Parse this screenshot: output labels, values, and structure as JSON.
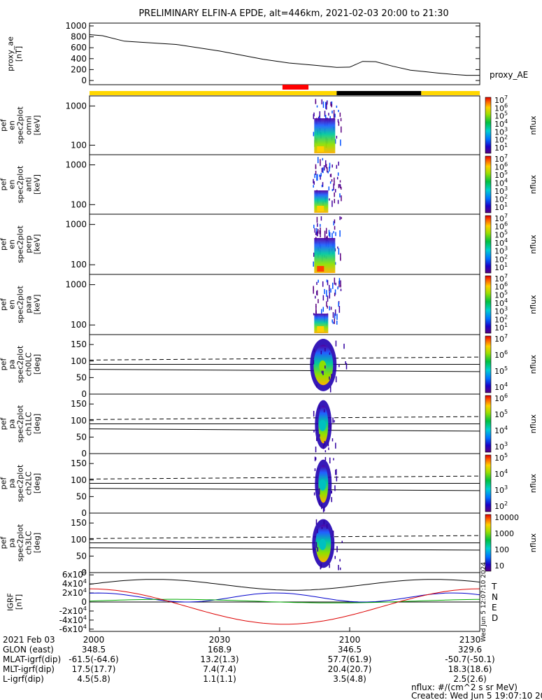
{
  "title": "PRELIMINARY ELFIN-A EPDE, alt=446km, 2021-02-03 20:00 to 21:30",
  "colors": {
    "orbit_day": "#ffd700",
    "orbit_night": "#000000",
    "science_zone": "#ff0000",
    "bx": "#000000",
    "by": "#0000cc",
    "bz": "#00aa00",
    "bd": "#dd0000"
  },
  "chart_data": [
    {
      "type": "line",
      "name": "proxy_ae",
      "ylabel": "proxy_ae\n[nT]",
      "legend": "proxy_AE",
      "x_minutes": [
        0,
        3,
        8,
        12,
        20,
        30,
        40,
        46,
        52,
        57,
        60,
        63,
        66,
        70,
        74,
        77,
        80,
        84,
        87,
        90
      ],
      "values": [
        840,
        820,
        720,
        700,
        660,
        540,
        390,
        320,
        280,
        240,
        245,
        350,
        345,
        260,
        190,
        165,
        140,
        110,
        95,
        95
      ],
      "ylim": [
        0,
        1000
      ],
      "yticks": [
        "1000",
        "800",
        "600",
        "400",
        "200",
        "0"
      ]
    },
    {
      "type": "heatmap",
      "name": "ela_pef_en_spec2plot_omni",
      "ylabel": "ela\npef\nen\nspec2plot\nomni\n[keV]",
      "yscale": "log",
      "yticks": [
        "1000",
        "100"
      ],
      "colorbar_label": "nflux",
      "colorbar_ticks": [
        "10^7",
        "10^6",
        "10^5",
        "10^4",
        "10^3",
        "10^2",
        "10^1"
      ]
    },
    {
      "type": "heatmap",
      "name": "ela_pef_en_spec2plot_anti",
      "ylabel": "ela\npef\nen\nspec2plot\nanti\n[keV]",
      "yscale": "log",
      "yticks": [
        "1000",
        "100"
      ],
      "colorbar_label": "nflux",
      "colorbar_ticks": [
        "10^7",
        "10^6",
        "10^5",
        "10^4",
        "10^3",
        "10^2",
        "10^1"
      ]
    },
    {
      "type": "heatmap",
      "name": "ela_pef_en_spec2plot_perp",
      "ylabel": "ela\npef\nen\nspec2plot\nperp\n[keV]",
      "yscale": "log",
      "yticks": [
        "1000",
        "100"
      ],
      "colorbar_label": "nflux",
      "colorbar_ticks": [
        "10^7",
        "10^6",
        "10^5",
        "10^4",
        "10^3",
        "10^2",
        "10^1"
      ]
    },
    {
      "type": "heatmap",
      "name": "ela_pef_en_spec2plot_para",
      "ylabel": "ela\npef\nen\nspec2plot\npara\n[keV]",
      "yscale": "log",
      "yticks": [
        "1000",
        "100"
      ],
      "colorbar_label": "nflux",
      "colorbar_ticks": [
        "10^7",
        "10^6",
        "10^5",
        "10^4",
        "10^3",
        "10^2",
        "10^1"
      ]
    },
    {
      "type": "heatmap",
      "name": "ela_pef_pa_spec2plot_ch0LC",
      "ylabel": "ela\npef\npa\nspec2plot\nch0LC\n[deg]",
      "yticks": [
        "150",
        "100",
        "50",
        "0"
      ],
      "ylim": [
        0,
        180
      ],
      "colorbar_label": "nflux",
      "colorbar_ticks": [
        "10^7",
        "10^6",
        "10^5",
        "10^4"
      ]
    },
    {
      "type": "heatmap",
      "name": "ela_pef_pa_spec2plot_ch1LC",
      "ylabel": "ela\npef\npa\nspec2plot\nch1LC\n[deg]",
      "yticks": [
        "150",
        "100",
        "50",
        "0"
      ],
      "ylim": [
        0,
        180
      ],
      "colorbar_label": "nflux",
      "colorbar_ticks": [
        "10^6",
        "10^5",
        "10^4",
        "10^3"
      ]
    },
    {
      "type": "heatmap",
      "name": "ela_pef_pa_spec2plot_ch2LC",
      "ylabel": "ela\npef\npa\nspec2plot\nch2LC\n[deg]",
      "yticks": [
        "150",
        "100",
        "50",
        "0"
      ],
      "ylim": [
        0,
        180
      ],
      "colorbar_label": "nflux",
      "colorbar_ticks": [
        "10^5",
        "10^4",
        "10^3",
        "10^2"
      ]
    },
    {
      "type": "heatmap",
      "name": "ela_pef_pa_spec2plot_ch3LC",
      "ylabel": "ela\npef\npa\nspec2plot\nch3LC\n[deg]",
      "yticks": [
        "150",
        "100",
        "50",
        "0"
      ],
      "ylim": [
        0,
        180
      ],
      "colorbar_label": "nflux",
      "colorbar_ticks": [
        "10000",
        "1000",
        "100",
        "10"
      ]
    },
    {
      "type": "line",
      "name": "IGRF",
      "ylabel": "IGRF\n[nT]",
      "yticks": [
        "6x10^4",
        "4x10^4",
        "2x10^4",
        "0",
        "-2x10^4",
        "-4x10^4",
        "-6x10^4"
      ],
      "ylim": [
        -65000,
        65000
      ],
      "legend": [
        "T",
        "N",
        "E",
        "D"
      ],
      "stamp": "Wed Jun  5 12:07:10 2024"
    }
  ],
  "xaxis": {
    "ticks": [
      "2000",
      "2030",
      "2100",
      "2130"
    ],
    "rows": [
      {
        "label": "2021 Feb 03",
        "values": [
          "2000",
          "2030",
          "2100",
          "2130"
        ]
      },
      {
        "label": "GLON (east)",
        "values": [
          "348.5",
          "168.9",
          "346.5",
          "329.6"
        ]
      },
      {
        "label": "MLAT-igrf(dip)",
        "values": [
          "-61.5(-64.6)",
          "13.2(1.3)",
          "57.7(61.9)",
          "-50.7(-50.1)"
        ]
      },
      {
        "label": "MLT-igrf(dip)",
        "values": [
          "17.5(17.7)",
          "7.4(7.4)",
          "20.4(20.7)",
          "18.3(18.6)"
        ]
      },
      {
        "label": "L-igrf(dip)",
        "values": [
          "4.5(5.8)",
          "1.1(1.1)",
          "3.5(4.8)",
          "2.5(2.6)"
        ]
      }
    ]
  },
  "footer": {
    "units": "nflux: #/(cm^2 s sr MeV)",
    "created": "Created: Wed Jun  5 19:07:10 2024"
  }
}
